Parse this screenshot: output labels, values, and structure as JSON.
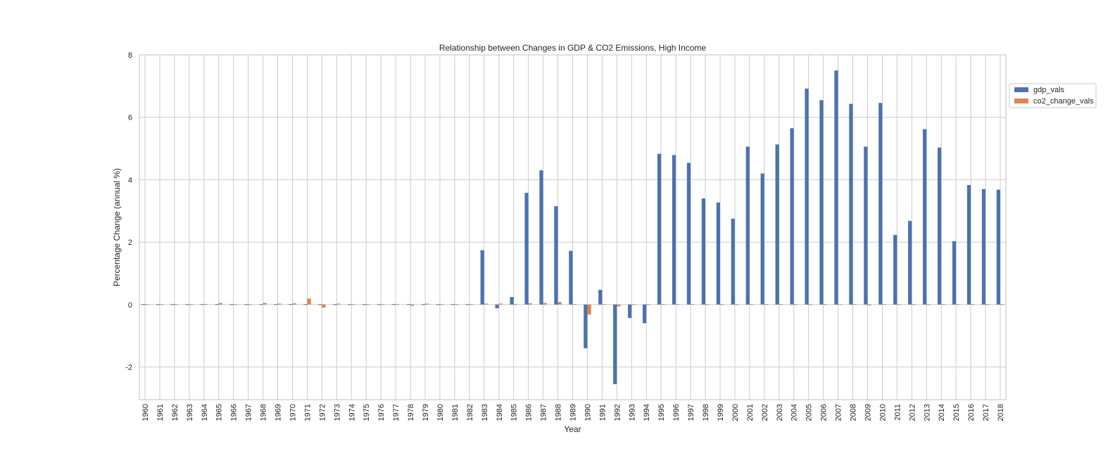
{
  "chart_data": {
    "type": "bar",
    "title": "Relationship between Changes in GDP & CO2 Emissions, High Income",
    "xlabel": "Year",
    "ylabel": "Percentage Change (annual %)",
    "ylim": [
      -3.05,
      8
    ],
    "yticks": [
      -2,
      0,
      2,
      4,
      6,
      8
    ],
    "grid": true,
    "legend_position": "right",
    "categories": [
      "1960",
      "1961",
      "1962",
      "1963",
      "1964",
      "1965",
      "1966",
      "1967",
      "1968",
      "1969",
      "1970",
      "1971",
      "1972",
      "1973",
      "1974",
      "1975",
      "1976",
      "1977",
      "1978",
      "1979",
      "1980",
      "1981",
      "1982",
      "1983",
      "1984",
      "1985",
      "1986",
      "1987",
      "1988",
      "1989",
      "1990",
      "1991",
      "1992",
      "1993",
      "1994",
      "1995",
      "1996",
      "1997",
      "1998",
      "1999",
      "2000",
      "2001",
      "2002",
      "2003",
      "2004",
      "2005",
      "2006",
      "2007",
      "2008",
      "2009",
      "2010",
      "2011",
      "2012",
      "2013",
      "2014",
      "2015",
      "2016",
      "2017",
      "2018"
    ],
    "series": [
      {
        "name": "gdp_vals",
        "color": "#4c72b0",
        "values": [
          0,
          0,
          0,
          0,
          0,
          0,
          0,
          0,
          0,
          0,
          0,
          0,
          0,
          0,
          0,
          0,
          0,
          0,
          0,
          0,
          0,
          0,
          0,
          1.74,
          -0.12,
          0.24,
          3.58,
          4.3,
          3.15,
          1.72,
          -1.4,
          0.47,
          -2.55,
          -0.43,
          -0.6,
          4.83,
          4.79,
          4.54,
          3.4,
          3.27,
          2.75,
          5.06,
          4.2,
          5.13,
          5.65,
          6.92,
          6.55,
          7.5,
          6.43,
          5.06,
          6.46,
          2.23,
          2.68,
          5.62,
          5.03,
          2.03,
          3.83,
          3.7,
          3.68
        ]
      },
      {
        "name": "co2_change_vals",
        "color": "#dd8452",
        "values": [
          0,
          0,
          0,
          0,
          0,
          0.05,
          0,
          0,
          0.05,
          0.03,
          0.04,
          0.19,
          -0.1,
          0.03,
          0,
          0,
          0,
          0,
          -0.04,
          0.03,
          0,
          0,
          0,
          0.03,
          0.03,
          0,
          0.04,
          0.05,
          0.08,
          0,
          -0.32,
          0,
          -0.06,
          0,
          0,
          0,
          0,
          0,
          0,
          0,
          0,
          0,
          0,
          0.02,
          0,
          0,
          0,
          0,
          0,
          -0.03,
          0,
          0,
          0,
          0,
          0,
          0,
          0,
          0,
          0
        ]
      }
    ]
  }
}
